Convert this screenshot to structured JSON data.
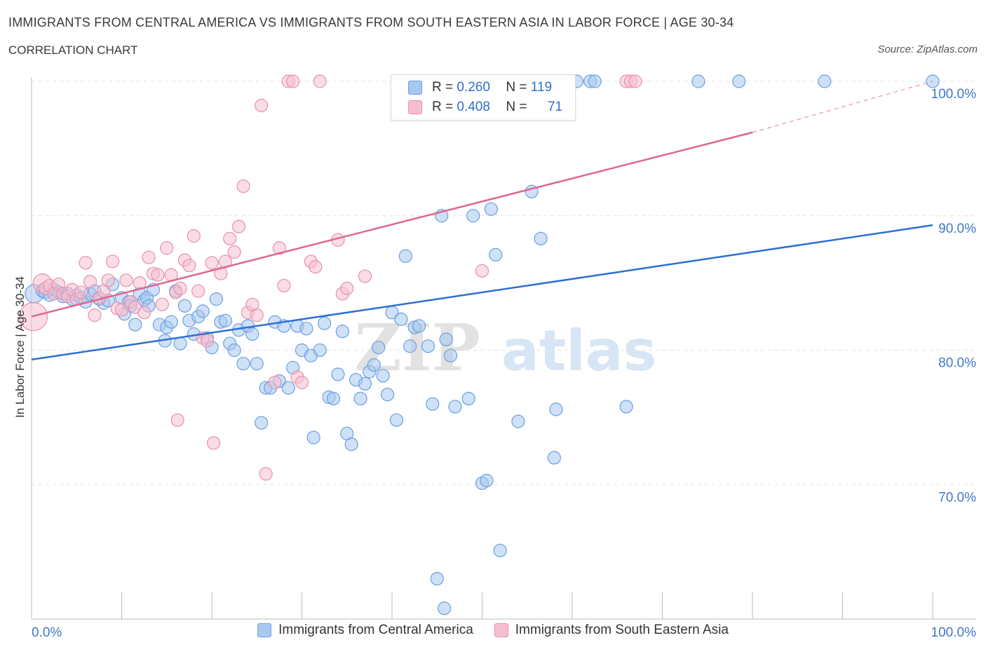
{
  "header": {
    "title": "IMMIGRANTS FROM CENTRAL AMERICA VS IMMIGRANTS FROM SOUTH EASTERN ASIA IN LABOR FORCE | AGE 30-34",
    "subtitle": "CORRELATION CHART",
    "source": "Source: ZipAtlas.com"
  },
  "stats": {
    "r_label": "R =",
    "n_label": "N =",
    "series1": {
      "r": "0.260",
      "n": "119"
    },
    "series2": {
      "r": "0.408",
      "n": "71"
    }
  },
  "watermark": {
    "zip": "ZIP",
    "atlas": "atlas"
  },
  "colors": {
    "blue_fill": "#a8c8f0",
    "blue_stroke": "#6a9fe0",
    "blue_line": "#2d6fd1",
    "pink_fill": "#f6bfcf",
    "pink_stroke": "#e890ac",
    "pink_line": "#e0668f",
    "tick_label": "#3f78c8",
    "grid": "#e2e2e2"
  },
  "chart_data": {
    "type": "scatter",
    "xlabel": "",
    "ylabel": "In Labor Force | Age 30-34",
    "x_range": [
      0,
      100
    ],
    "y_range": [
      60,
      100
    ],
    "x_tick_labels": [
      {
        "value": 0,
        "label": "0.0%"
      },
      {
        "value": 100,
        "label": "100.0%"
      }
    ],
    "y_ticks": [
      {
        "value": 70,
        "label": "70.0%"
      },
      {
        "value": 80,
        "label": "80.0%"
      },
      {
        "value": 90,
        "label": "90.0%"
      },
      {
        "value": 100,
        "label": "100.0%"
      }
    ],
    "grid": true,
    "legend": "bottom",
    "series": [
      {
        "name": "Immigrants from Central America",
        "color": "blue",
        "r": 0.26,
        "n": 119,
        "trend": {
          "x0": 0,
          "y0": 79.3,
          "x1": 100,
          "y1": 89.3,
          "dashed_from": null
        },
        "points": [
          [
            0.3,
            84.2,
            2
          ],
          [
            1.2,
            84.4,
            1
          ],
          [
            1.5,
            84.3,
            1
          ],
          [
            2,
            84.1,
            1
          ],
          [
            2.5,
            84.5,
            1
          ],
          [
            3,
            84.3,
            1
          ],
          [
            3.5,
            84.0,
            1
          ],
          [
            4,
            84.2,
            1
          ],
          [
            4.5,
            83.8,
            1
          ],
          [
            5,
            84.1,
            1
          ],
          [
            5.5,
            83.9,
            1
          ],
          [
            6,
            83.6,
            1
          ],
          [
            6.5,
            84.2,
            1
          ],
          [
            7,
            84.4,
            1
          ],
          [
            7.5,
            83.8,
            1
          ],
          [
            8,
            83.5,
            1
          ],
          [
            8.5,
            83.7,
            1
          ],
          [
            9,
            84.9,
            1
          ],
          [
            10,
            83.9,
            1
          ],
          [
            10.3,
            82.7,
            1
          ],
          [
            10.8,
            83.6,
            1
          ],
          [
            11,
            83.3,
            1
          ],
          [
            11.5,
            81.9,
            1
          ],
          [
            12,
            84.2,
            1
          ],
          [
            12.5,
            83.7,
            1
          ],
          [
            12.8,
            83.9,
            1
          ],
          [
            13,
            83.3,
            1
          ],
          [
            13.5,
            84.5,
            1
          ],
          [
            14.2,
            81.9,
            1
          ],
          [
            14.8,
            80.7,
            1
          ],
          [
            15,
            81.7,
            1
          ],
          [
            15.5,
            82.1,
            1
          ],
          [
            16,
            84.4,
            1
          ],
          [
            16.5,
            80.5,
            1
          ],
          [
            17,
            83.3,
            1
          ],
          [
            17.5,
            82.2,
            1
          ],
          [
            18,
            81.2,
            1
          ],
          [
            18.5,
            82.5,
            1
          ],
          [
            19,
            82.9,
            1
          ],
          [
            19.5,
            80.9,
            1
          ],
          [
            20,
            80.2,
            1
          ],
          [
            20.5,
            83.8,
            1
          ],
          [
            21,
            82.1,
            1
          ],
          [
            21.5,
            82.2,
            1
          ],
          [
            22,
            80.5,
            1
          ],
          [
            22.5,
            80.0,
            1
          ],
          [
            23,
            81.5,
            1
          ],
          [
            23.5,
            79.0,
            1
          ],
          [
            24,
            81.8,
            1
          ],
          [
            24.5,
            81.2,
            1
          ],
          [
            25,
            79.0,
            1
          ],
          [
            25.5,
            74.6,
            1
          ],
          [
            26,
            77.2,
            1
          ],
          [
            26.5,
            77.2,
            1
          ],
          [
            27,
            82.1,
            1
          ],
          [
            27.5,
            77.7,
            1
          ],
          [
            28,
            81.8,
            1
          ],
          [
            28.5,
            77.2,
            1
          ],
          [
            29,
            78.7,
            1
          ],
          [
            29.5,
            81.8,
            1
          ],
          [
            30,
            80.0,
            1
          ],
          [
            30.5,
            81.6,
            1
          ],
          [
            31,
            79.6,
            1
          ],
          [
            31.3,
            73.5,
            1
          ],
          [
            32,
            80.0,
            1
          ],
          [
            32.5,
            82.0,
            1
          ],
          [
            33,
            76.5,
            1
          ],
          [
            33.5,
            76.4,
            1
          ],
          [
            34,
            78.2,
            1
          ],
          [
            34.5,
            81.4,
            1
          ],
          [
            35,
            73.8,
            1
          ],
          [
            35.5,
            73.0,
            1
          ],
          [
            36,
            77.8,
            1
          ],
          [
            36.5,
            76.4,
            1
          ],
          [
            37,
            77.5,
            1
          ],
          [
            37.5,
            78.4,
            1
          ],
          [
            38,
            78.9,
            1
          ],
          [
            38.5,
            80.2,
            1
          ],
          [
            39,
            78.1,
            1
          ],
          [
            39.5,
            76.7,
            1
          ],
          [
            40,
            82.8,
            1
          ],
          [
            40.5,
            74.8,
            1
          ],
          [
            41,
            82.3,
            1
          ],
          [
            41.5,
            87.0,
            1
          ],
          [
            42,
            80.3,
            1
          ],
          [
            42.5,
            81.7,
            1
          ],
          [
            43,
            81.8,
            1
          ],
          [
            44,
            80.3,
            1
          ],
          [
            44.5,
            76.0,
            1
          ],
          [
            45,
            63.0,
            1
          ],
          [
            45.5,
            90.0,
            1
          ],
          [
            45.8,
            60.8,
            1
          ],
          [
            46,
            80.8,
            1
          ],
          [
            46.5,
            79.6,
            1
          ],
          [
            47,
            75.8,
            1
          ],
          [
            48.5,
            76.4,
            1
          ],
          [
            49,
            90.0,
            1
          ],
          [
            50,
            70.1,
            1
          ],
          [
            50.5,
            70.3,
            1
          ],
          [
            51,
            90.5,
            1
          ],
          [
            51.5,
            87.1,
            1
          ],
          [
            52,
            65.1,
            1
          ],
          [
            54,
            74.7,
            1
          ],
          [
            55.5,
            91.8,
            1
          ],
          [
            56.5,
            88.3,
            1
          ],
          [
            58,
            72.0,
            1
          ],
          [
            58.2,
            75.6,
            1
          ],
          [
            59,
            100,
            1
          ],
          [
            60.5,
            100,
            1
          ],
          [
            62,
            100,
            1
          ],
          [
            62.5,
            100,
            1
          ],
          [
            66,
            75.8,
            1
          ],
          [
            74,
            100,
            1
          ],
          [
            78.5,
            100,
            1
          ],
          [
            88,
            100,
            1
          ],
          [
            100,
            100,
            1
          ],
          [
            44.5,
            100,
            1
          ],
          [
            47.5,
            100,
            1
          ],
          [
            53.5,
            100,
            1
          ]
        ]
      },
      {
        "name": "Immigrants from South Eastern Asia",
        "color": "pink",
        "r": 0.408,
        "n": 71,
        "trend": {
          "x0": 0,
          "y0": 82.5,
          "x1": 80,
          "y1": 96.2,
          "dashed_to": 100,
          "dashed_y": 100
        },
        "points": [
          [
            0.2,
            82.5,
            3
          ],
          [
            1.2,
            85.0,
            2
          ],
          [
            1.5,
            84.6,
            1
          ],
          [
            2,
            84.8,
            1
          ],
          [
            2.5,
            84.2,
            1
          ],
          [
            3,
            84.9,
            1
          ],
          [
            3.5,
            84.2,
            1
          ],
          [
            4,
            84.0,
            1
          ],
          [
            4.5,
            84.5,
            1
          ],
          [
            5,
            83.8,
            1
          ],
          [
            5.5,
            84.3,
            1
          ],
          [
            6,
            86.5,
            1
          ],
          [
            6.5,
            85.1,
            1
          ],
          [
            7,
            82.6,
            1
          ],
          [
            7.5,
            83.9,
            1
          ],
          [
            8,
            84.4,
            1
          ],
          [
            8.5,
            85.2,
            1
          ],
          [
            9,
            86.6,
            1
          ],
          [
            9.5,
            83.1,
            1
          ],
          [
            10,
            83.0,
            1
          ],
          [
            10.5,
            85.2,
            1
          ],
          [
            11,
            83.6,
            1
          ],
          [
            11.5,
            83.2,
            1
          ],
          [
            12,
            85.0,
            1
          ],
          [
            12.5,
            82.8,
            1
          ],
          [
            13,
            86.9,
            1
          ],
          [
            13.5,
            85.7,
            1
          ],
          [
            14,
            85.6,
            1
          ],
          [
            14.5,
            83.4,
            1
          ],
          [
            15,
            87.6,
            1
          ],
          [
            15.5,
            85.6,
            1
          ],
          [
            16,
            84.3,
            1
          ],
          [
            16.2,
            74.8,
            1
          ],
          [
            16.5,
            84.6,
            1
          ],
          [
            17,
            86.7,
            1
          ],
          [
            17.5,
            86.3,
            1
          ],
          [
            18,
            88.5,
            1
          ],
          [
            18.5,
            84.4,
            1
          ],
          [
            19,
            80.9,
            1
          ],
          [
            19.5,
            80.7,
            1
          ],
          [
            20,
            86.5,
            1
          ],
          [
            20.2,
            73.1,
            1
          ],
          [
            21,
            85.7,
            1
          ],
          [
            21.5,
            86.6,
            1
          ],
          [
            22,
            88.3,
            1
          ],
          [
            22.5,
            87.3,
            1
          ],
          [
            23,
            89.2,
            1
          ],
          [
            23.5,
            92.2,
            1
          ],
          [
            24,
            82.8,
            1
          ],
          [
            24.5,
            83.4,
            1
          ],
          [
            25,
            82.6,
            1
          ],
          [
            25.5,
            98.2,
            1
          ],
          [
            26,
            70.8,
            1
          ],
          [
            27,
            77.6,
            1
          ],
          [
            27.5,
            87.6,
            1
          ],
          [
            28,
            84.8,
            1
          ],
          [
            28.5,
            100,
            1
          ],
          [
            29,
            100,
            1
          ],
          [
            29.5,
            78.0,
            1
          ],
          [
            30,
            77.6,
            1
          ],
          [
            31,
            86.6,
            1
          ],
          [
            31.5,
            86.2,
            1
          ],
          [
            32,
            100,
            1
          ],
          [
            34,
            88.2,
            1
          ],
          [
            34.5,
            84.2,
            1
          ],
          [
            35,
            84.6,
            1
          ],
          [
            37,
            85.5,
            1
          ],
          [
            50,
            85.9,
            1
          ],
          [
            66,
            100,
            1
          ],
          [
            66.5,
            100,
            1
          ],
          [
            67,
            100,
            1
          ]
        ]
      }
    ]
  }
}
